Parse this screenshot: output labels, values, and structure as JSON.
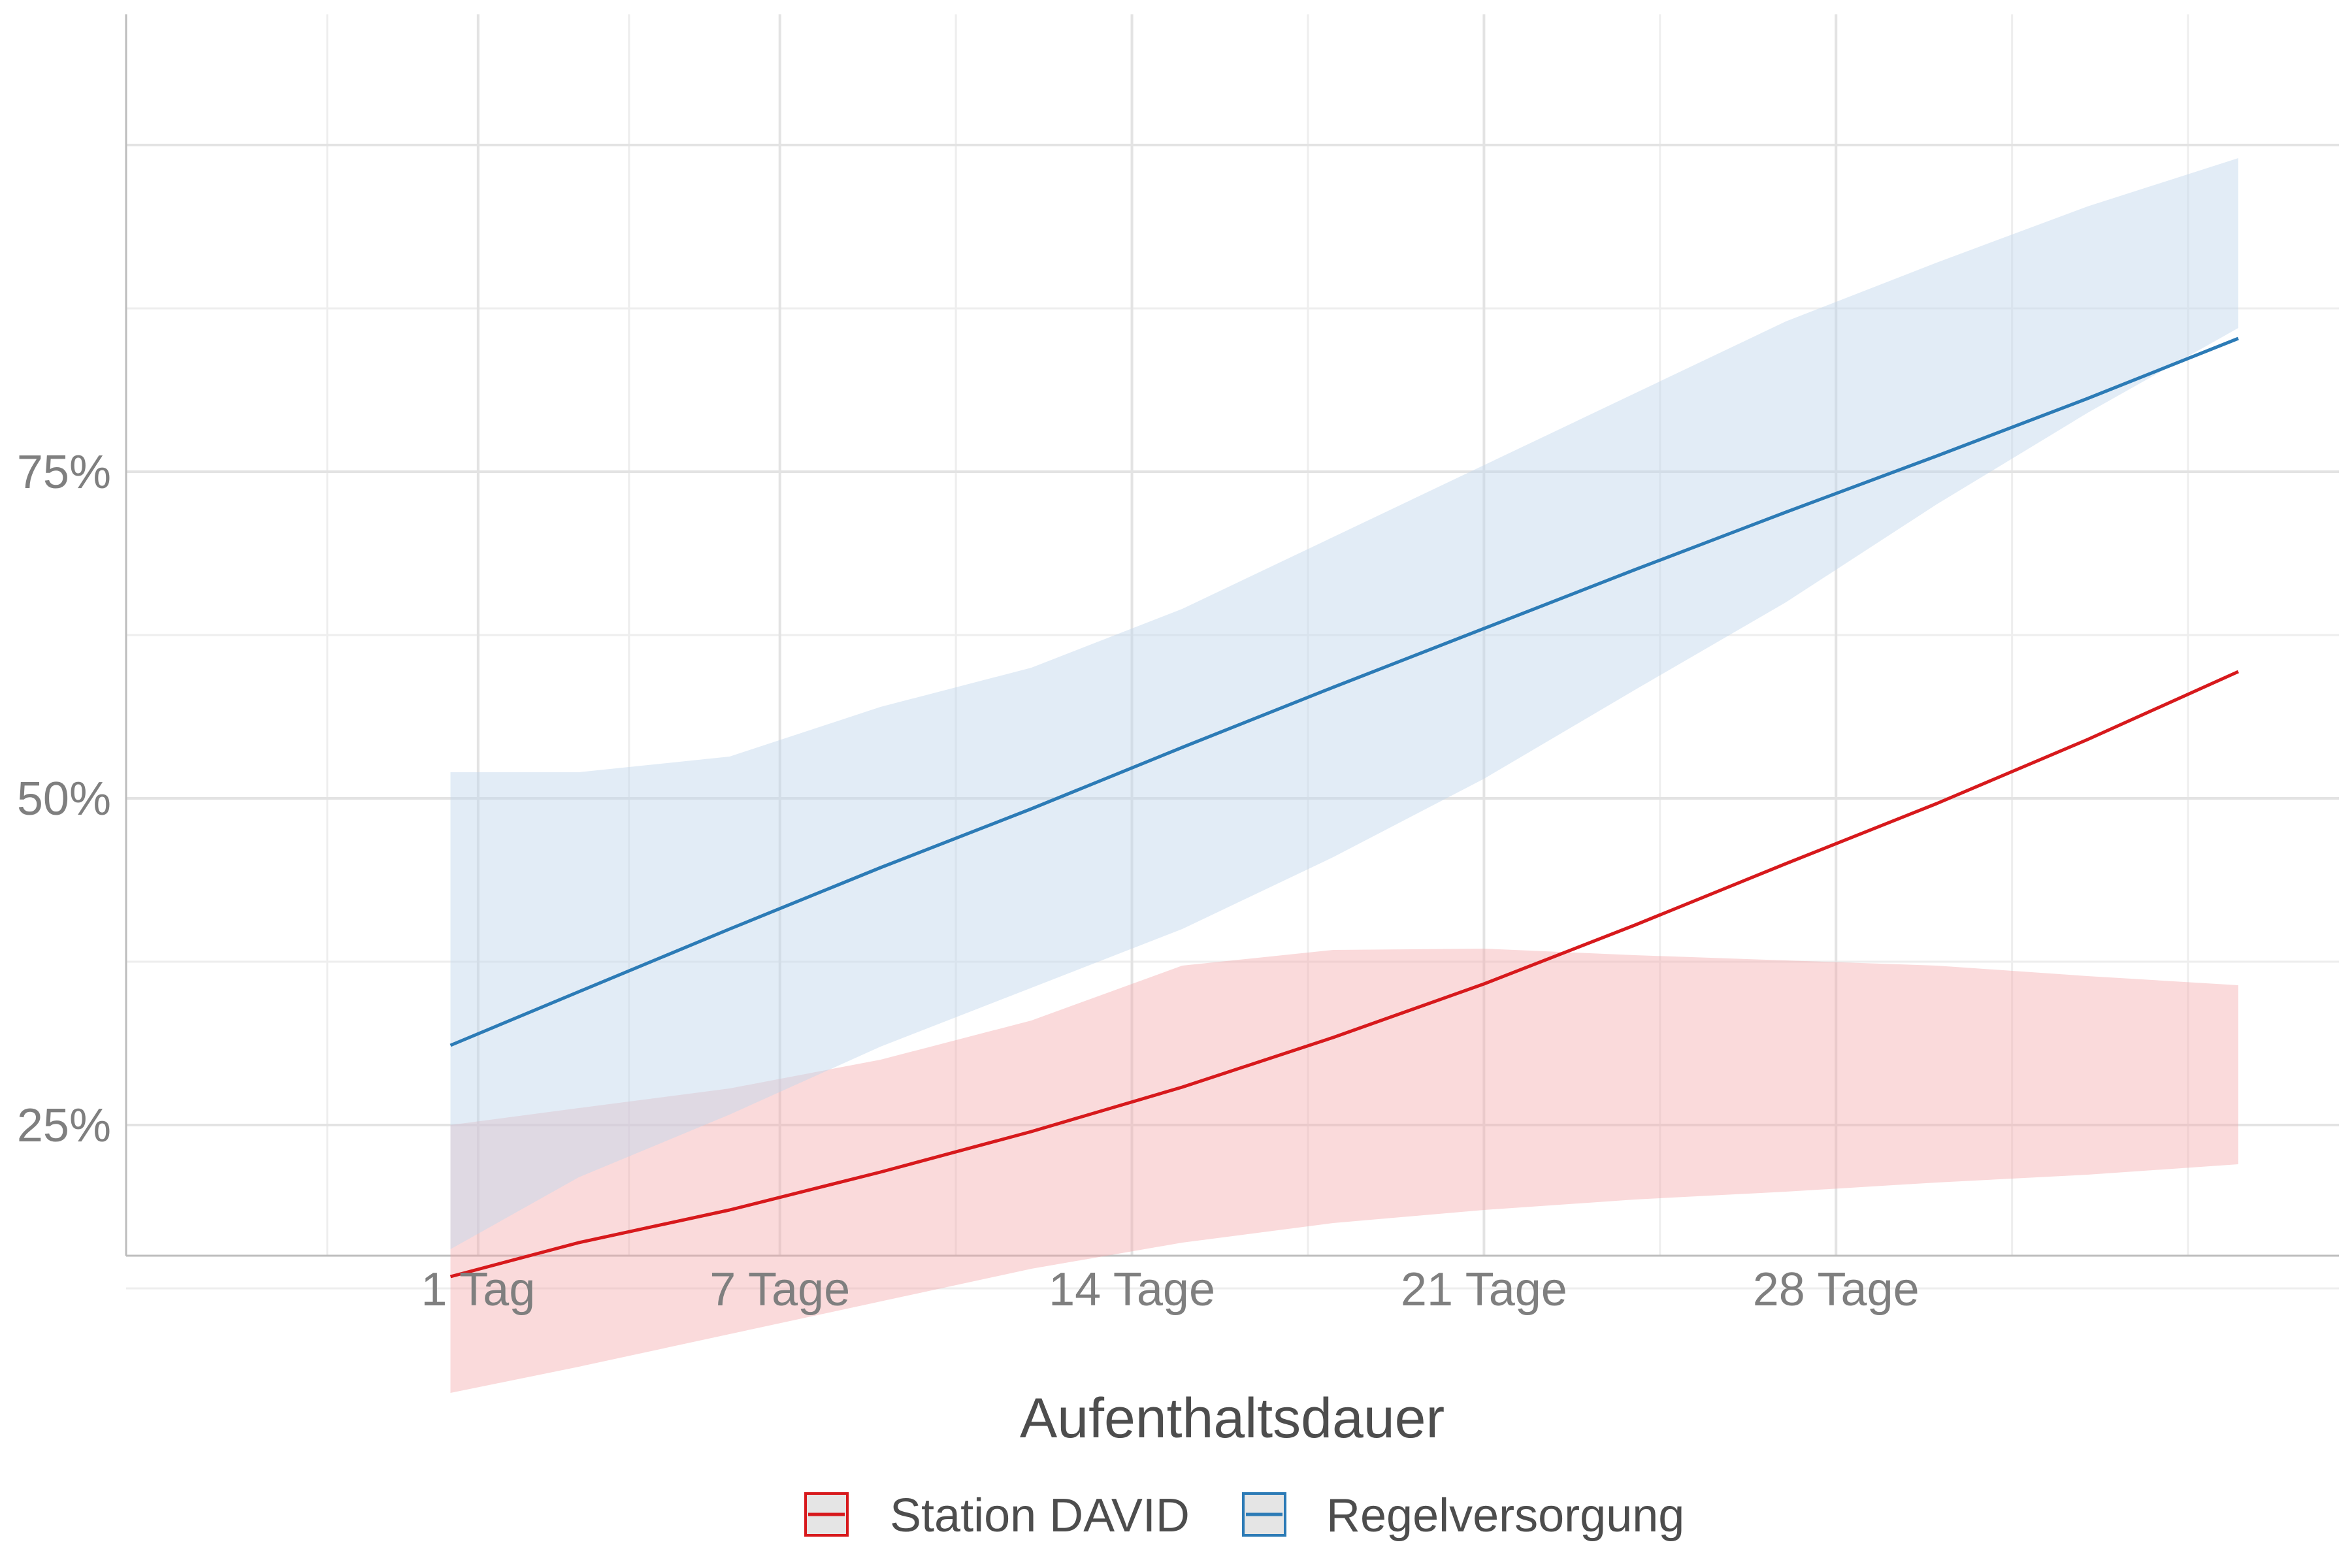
{
  "chart_data": {
    "type": "line",
    "xlabel": "Aufenthaltsdauer",
    "ylabel": "",
    "x_ticks": [
      {
        "value": 1,
        "label": "1 Tag"
      },
      {
        "value": 7,
        "label": "7 Tage"
      },
      {
        "value": 14,
        "label": "14 Tage"
      },
      {
        "value": 21,
        "label": "21 Tage"
      },
      {
        "value": 28,
        "label": "28 Tage"
      }
    ],
    "y_ticks": [
      {
        "value": 25,
        "label": "25%"
      },
      {
        "value": 50,
        "label": "50%"
      },
      {
        "value": 75,
        "label": "75%"
      }
    ],
    "xlim": [
      -6.0,
      38.0
    ],
    "ylim": [
      15.0,
      110.0
    ],
    "grid": true,
    "legend_position": "bottom",
    "series": [
      {
        "name": "Station DAVID",
        "color": "#d7191c",
        "fill": "#f4a6aa",
        "x": [
          0.45,
          3.0,
          6.0,
          9.0,
          12.0,
          15.0,
          18.0,
          21.0,
          24.0,
          27.0,
          30.0,
          33.0,
          36.0
        ],
        "y": [
          13.4,
          16.0,
          18.5,
          21.4,
          24.5,
          27.9,
          31.7,
          35.8,
          40.3,
          45.0,
          49.6,
          54.5,
          59.7
        ],
        "ci_low": [
          4.5,
          6.5,
          9.0,
          11.5,
          14.0,
          16.0,
          17.5,
          18.5,
          19.3,
          19.9,
          20.6,
          21.2,
          22.0
        ],
        "ci_high": [
          25.0,
          26.3,
          27.8,
          30.0,
          33.0,
          37.2,
          38.4,
          38.5,
          38.0,
          37.6,
          37.2,
          36.4,
          35.7
        ]
      },
      {
        "name": "Regelversorgung",
        "color": "#2c7bb6",
        "fill": "#c3d8ec",
        "x": [
          0.45,
          3.0,
          6.0,
          9.0,
          12.0,
          15.0,
          18.0,
          21.0,
          24.0,
          27.0,
          30.0,
          33.0,
          36.0
        ],
        "y": [
          31.1,
          35.2,
          40.0,
          44.7,
          49.2,
          53.9,
          58.5,
          63.0,
          67.5,
          71.9,
          76.2,
          80.6,
          85.2
        ],
        "ci_low": [
          15.5,
          21.0,
          25.8,
          31.0,
          35.5,
          40.0,
          45.5,
          51.5,
          58.3,
          65.0,
          72.5,
          79.5,
          86.0
        ],
        "ci_high": [
          52.0,
          52.0,
          53.2,
          57.0,
          60.0,
          64.5,
          70.0,
          75.5,
          81.0,
          86.5,
          91.0,
          95.3,
          99.0
        ]
      }
    ]
  }
}
